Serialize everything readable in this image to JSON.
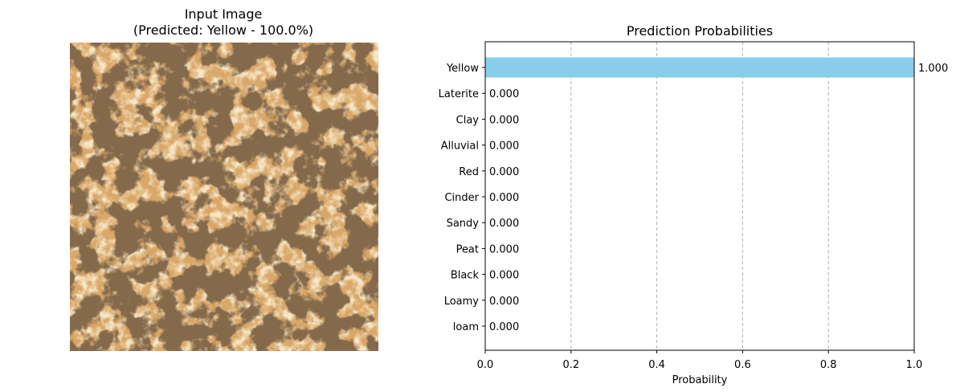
{
  "image_panel": {
    "title_line1": "Input Image",
    "title_line2": "(Predicted: Yellow - 100.0%)"
  },
  "colors": {
    "bar": "#87ceeb",
    "grid": "#b0b0b0",
    "soil_base": "#d9a868",
    "soil_light": "#e8c48e",
    "soil_dark": "#3b2312"
  },
  "chart_data": {
    "type": "bar",
    "orientation": "horizontal",
    "title": "Prediction Probabilities",
    "xlabel": "Probability",
    "ylabel": "",
    "xlim": [
      0,
      1
    ],
    "xticks": [
      0.0,
      0.2,
      0.4,
      0.6,
      0.8,
      1.0
    ],
    "xtick_labels": [
      "0.0",
      "0.2",
      "0.4",
      "0.6",
      "0.8",
      "1.0"
    ],
    "grid": "x-dashed",
    "categories": [
      "Yellow",
      "Laterite",
      "Clay",
      "Alluvial",
      "Red",
      "Cinder",
      "Sandy",
      "Peat",
      "Black",
      "Loamy",
      "loam"
    ],
    "values": [
      1.0,
      0.0,
      0.0,
      0.0,
      0.0,
      0.0,
      0.0,
      0.0,
      0.0,
      0.0,
      0.0
    ],
    "value_labels": [
      "1.000",
      "0.000",
      "0.000",
      "0.000",
      "0.000",
      "0.000",
      "0.000",
      "0.000",
      "0.000",
      "0.000",
      "0.000"
    ]
  }
}
